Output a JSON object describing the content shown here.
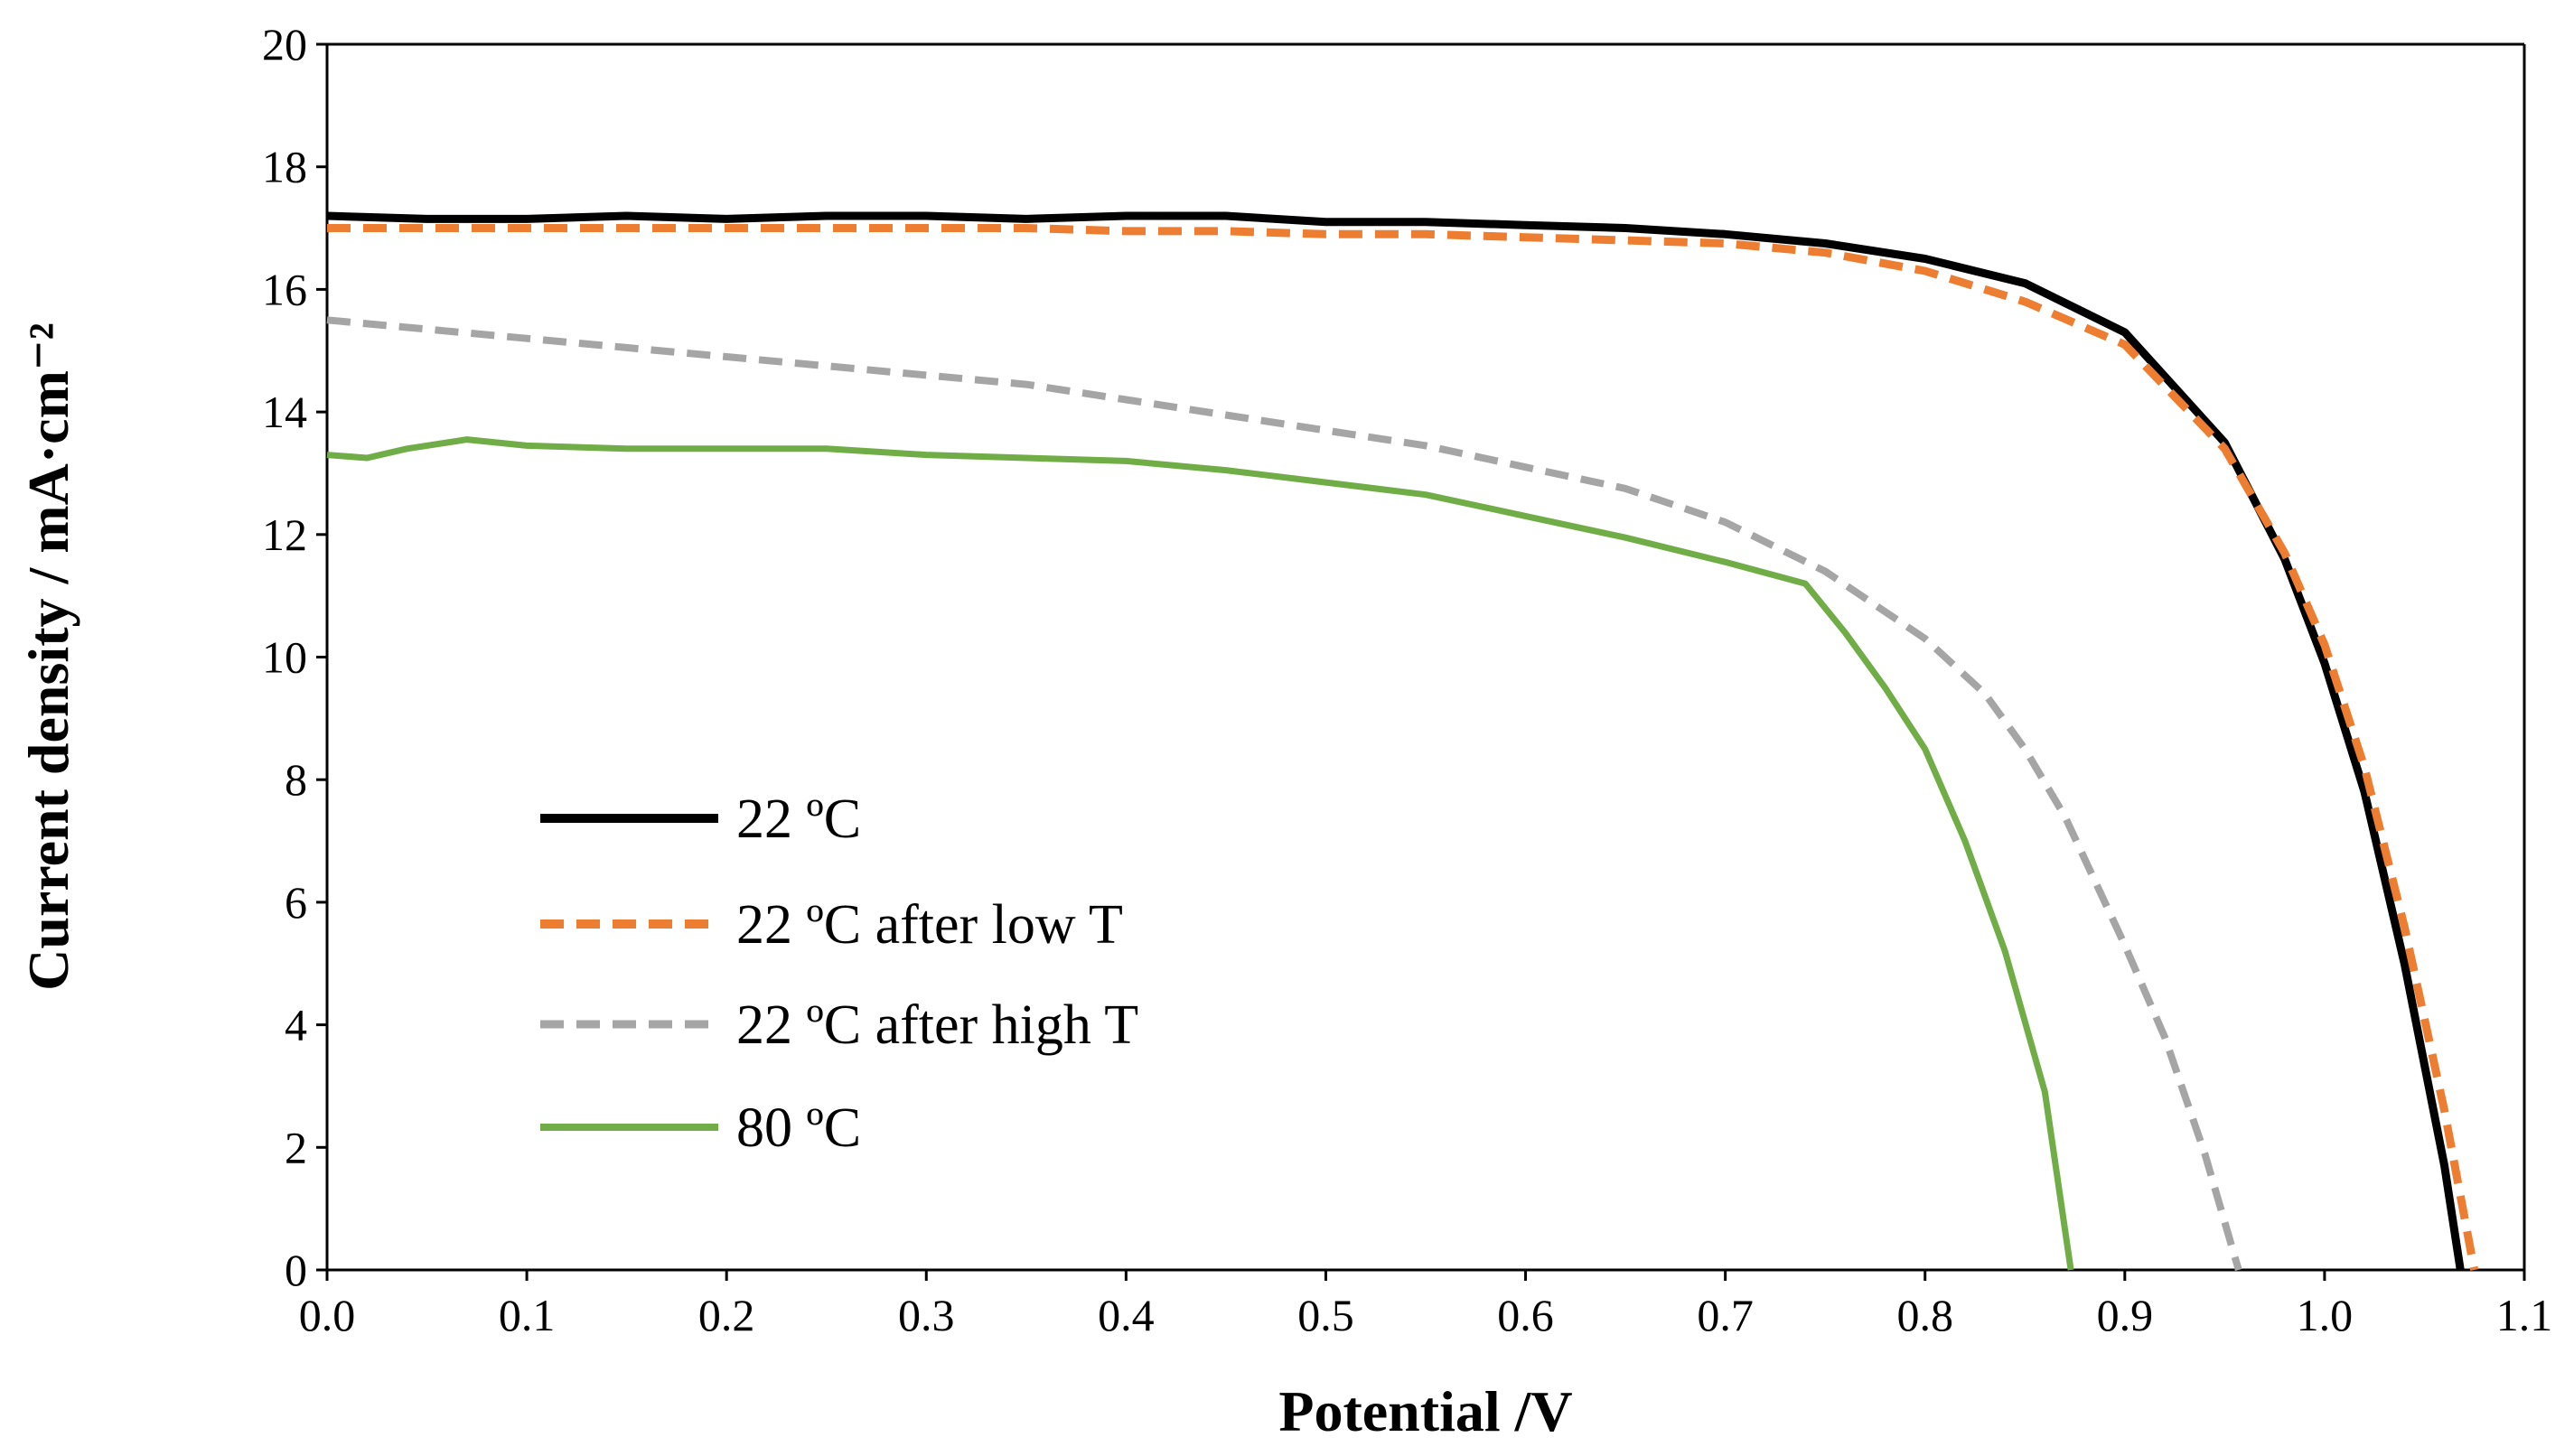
{
  "chart_data": {
    "type": "line",
    "title": "",
    "xlabel": "Potential /V",
    "ylabel": "Current density / mA·cm⁻²",
    "xlim": [
      0,
      1.1
    ],
    "ylim": [
      0,
      20
    ],
    "x_ticks": [
      "0.0",
      "0.1",
      "0.2",
      "0.3",
      "0.4",
      "0.5",
      "0.6",
      "0.7",
      "0.8",
      "0.9",
      "1.0",
      "1.1"
    ],
    "y_ticks": [
      "0",
      "2",
      "4",
      "6",
      "8",
      "10",
      "12",
      "14",
      "16",
      "18",
      "20"
    ],
    "grid": false,
    "legend_position": "bottom-left",
    "series": [
      {
        "name": "22 ºC",
        "color": "#000000",
        "dash": "solid",
        "points": [
          [
            0,
            17.2
          ],
          [
            0.05,
            17.15
          ],
          [
            0.1,
            17.15
          ],
          [
            0.15,
            17.2
          ],
          [
            0.2,
            17.15
          ],
          [
            0.25,
            17.2
          ],
          [
            0.3,
            17.2
          ],
          [
            0.35,
            17.15
          ],
          [
            0.4,
            17.2
          ],
          [
            0.45,
            17.2
          ],
          [
            0.5,
            17.1
          ],
          [
            0.55,
            17.1
          ],
          [
            0.6,
            17.05
          ],
          [
            0.65,
            17.0
          ],
          [
            0.7,
            16.9
          ],
          [
            0.75,
            16.75
          ],
          [
            0.8,
            16.5
          ],
          [
            0.85,
            16.1
          ],
          [
            0.9,
            15.3
          ],
          [
            0.95,
            13.5
          ],
          [
            0.98,
            11.6
          ],
          [
            1.0,
            9.9
          ],
          [
            1.02,
            7.8
          ],
          [
            1.04,
            5.0
          ],
          [
            1.06,
            1.7
          ],
          [
            1.068,
            0
          ]
        ]
      },
      {
        "name": "22 ºC after low T",
        "color": "#ED7D31",
        "dash": "dashed",
        "points": [
          [
            0,
            17.0
          ],
          [
            0.05,
            17.0
          ],
          [
            0.1,
            17.0
          ],
          [
            0.15,
            17.0
          ],
          [
            0.2,
            17.0
          ],
          [
            0.25,
            17.0
          ],
          [
            0.3,
            17.0
          ],
          [
            0.35,
            17.0
          ],
          [
            0.4,
            16.95
          ],
          [
            0.45,
            16.95
          ],
          [
            0.5,
            16.9
          ],
          [
            0.55,
            16.9
          ],
          [
            0.6,
            16.85
          ],
          [
            0.65,
            16.8
          ],
          [
            0.7,
            16.75
          ],
          [
            0.75,
            16.6
          ],
          [
            0.8,
            16.3
          ],
          [
            0.85,
            15.8
          ],
          [
            0.9,
            15.1
          ],
          [
            0.95,
            13.4
          ],
          [
            0.98,
            11.7
          ],
          [
            1.0,
            10.2
          ],
          [
            1.02,
            8.2
          ],
          [
            1.04,
            5.6
          ],
          [
            1.06,
            2.6
          ],
          [
            1.075,
            0
          ]
        ]
      },
      {
        "name": "22 ºC after high T",
        "color": "#A5A5A5",
        "dash": "dashed",
        "points": [
          [
            0,
            15.5
          ],
          [
            0.05,
            15.35
          ],
          [
            0.1,
            15.2
          ],
          [
            0.15,
            15.05
          ],
          [
            0.2,
            14.9
          ],
          [
            0.25,
            14.75
          ],
          [
            0.3,
            14.6
          ],
          [
            0.35,
            14.45
          ],
          [
            0.4,
            14.2
          ],
          [
            0.45,
            13.95
          ],
          [
            0.5,
            13.7
          ],
          [
            0.55,
            13.45
          ],
          [
            0.6,
            13.1
          ],
          [
            0.65,
            12.75
          ],
          [
            0.7,
            12.2
          ],
          [
            0.75,
            11.4
          ],
          [
            0.8,
            10.3
          ],
          [
            0.83,
            9.4
          ],
          [
            0.85,
            8.5
          ],
          [
            0.87,
            7.4
          ],
          [
            0.9,
            5.3
          ],
          [
            0.92,
            3.8
          ],
          [
            0.94,
            1.9
          ],
          [
            0.957,
            0
          ]
        ]
      },
      {
        "name": "80 ºC",
        "color": "#70AD47",
        "dash": "solid",
        "points": [
          [
            0,
            13.3
          ],
          [
            0.02,
            13.25
          ],
          [
            0.04,
            13.4
          ],
          [
            0.07,
            13.55
          ],
          [
            0.1,
            13.45
          ],
          [
            0.15,
            13.4
          ],
          [
            0.2,
            13.4
          ],
          [
            0.25,
            13.4
          ],
          [
            0.3,
            13.3
          ],
          [
            0.35,
            13.25
          ],
          [
            0.4,
            13.2
          ],
          [
            0.45,
            13.05
          ],
          [
            0.5,
            12.85
          ],
          [
            0.55,
            12.65
          ],
          [
            0.6,
            12.3
          ],
          [
            0.65,
            11.95
          ],
          [
            0.7,
            11.55
          ],
          [
            0.74,
            11.2
          ],
          [
            0.76,
            10.4
          ],
          [
            0.78,
            9.5
          ],
          [
            0.8,
            8.5
          ],
          [
            0.82,
            7.0
          ],
          [
            0.84,
            5.2
          ],
          [
            0.86,
            2.9
          ],
          [
            0.873,
            0
          ]
        ]
      }
    ]
  }
}
